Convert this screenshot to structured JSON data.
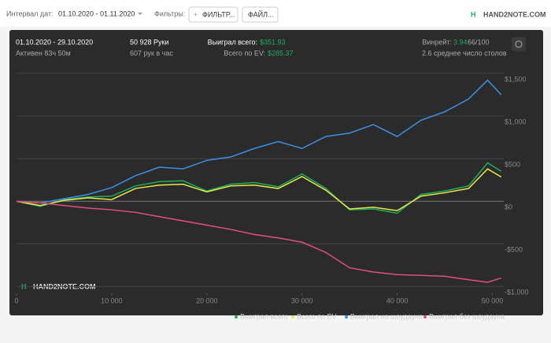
{
  "toolbar": {
    "date_label": "Интервал дат:",
    "date_range": "01.10.2020 - 01.11.2020",
    "filters_label": "Фильтры:",
    "filter_button": "ФИЛЬТР...",
    "file_button": "ФАЙЛ...",
    "logo": "HAND2NOTE.COM"
  },
  "summary": {
    "period": "01.10.2020 - 29.10.2020",
    "active": "Активен 83ч 50м",
    "hands": "50 928 Руки",
    "hands_per_hour": "607 рук в час",
    "won_label": "Выиграл всего:",
    "won_value": "$351.93",
    "ev_label": "Всего по EV:",
    "ev_value": "$285.37",
    "winrate_label": "Винрейт:",
    "winrate_value": "3.94",
    "winrate_unit": "66/100",
    "tables": "2.6 среднее число столов"
  },
  "watermark": "HAND2NOTE.COM",
  "chart_data": {
    "type": "line",
    "x": [
      0,
      2500,
      5000,
      7500,
      10000,
      12500,
      15000,
      17500,
      20000,
      22500,
      25000,
      27500,
      30000,
      32500,
      35000,
      37500,
      40000,
      42500,
      45000,
      47500,
      49500,
      50928
    ],
    "series": [
      {
        "name": "Выиграл всего",
        "color": "#1fae5e",
        "values": [
          0,
          -60,
          20,
          50,
          60,
          180,
          230,
          240,
          120,
          200,
          220,
          170,
          320,
          150,
          -100,
          -90,
          -140,
          80,
          120,
          180,
          450,
          352
        ]
      },
      {
        "name": "Всего по EV",
        "color": "#e8e84a",
        "values": [
          0,
          -50,
          10,
          40,
          20,
          150,
          190,
          200,
          110,
          180,
          190,
          150,
          290,
          130,
          -90,
          -70,
          -110,
          60,
          100,
          150,
          380,
          285
        ]
      },
      {
        "name": "Выиграл на шоудауне",
        "color": "#3d8fe6",
        "values": [
          0,
          -20,
          30,
          80,
          160,
          300,
          400,
          380,
          480,
          520,
          620,
          700,
          620,
          760,
          800,
          900,
          760,
          950,
          1050,
          1200,
          1420,
          1250
        ]
      },
      {
        "name": "Выиграл без шоудауна",
        "color": "#e0507a",
        "values": [
          0,
          -20,
          -50,
          -80,
          -100,
          -130,
          -180,
          -230,
          -280,
          -330,
          -390,
          -430,
          -480,
          -600,
          -780,
          -830,
          -860,
          -870,
          -880,
          -920,
          -950,
          -900
        ]
      }
    ],
    "xlim": [
      0,
      51200
    ],
    "xticks": [
      0,
      {
        "value": 10000,
        "label": "10 000"
      },
      {
        "value": 20000,
        "label": "20 000"
      },
      {
        "value": 30000,
        "label": "30 000"
      },
      {
        "value": 40000,
        "label": "40 000"
      },
      {
        "value": 50000,
        "label": "50 000"
      }
    ],
    "ylim": [
      -1080,
      1575
    ],
    "yticks": [
      {
        "value": -1000,
        "label": "-$1,000"
      },
      {
        "value": -500,
        "label": "-$500"
      },
      {
        "value": 0,
        "label": "$0"
      },
      {
        "value": 500,
        "label": "$500"
      },
      {
        "value": 1000,
        "label": "$1,000"
      },
      {
        "value": 1500,
        "label": "$1,500"
      }
    ],
    "grid": true
  }
}
